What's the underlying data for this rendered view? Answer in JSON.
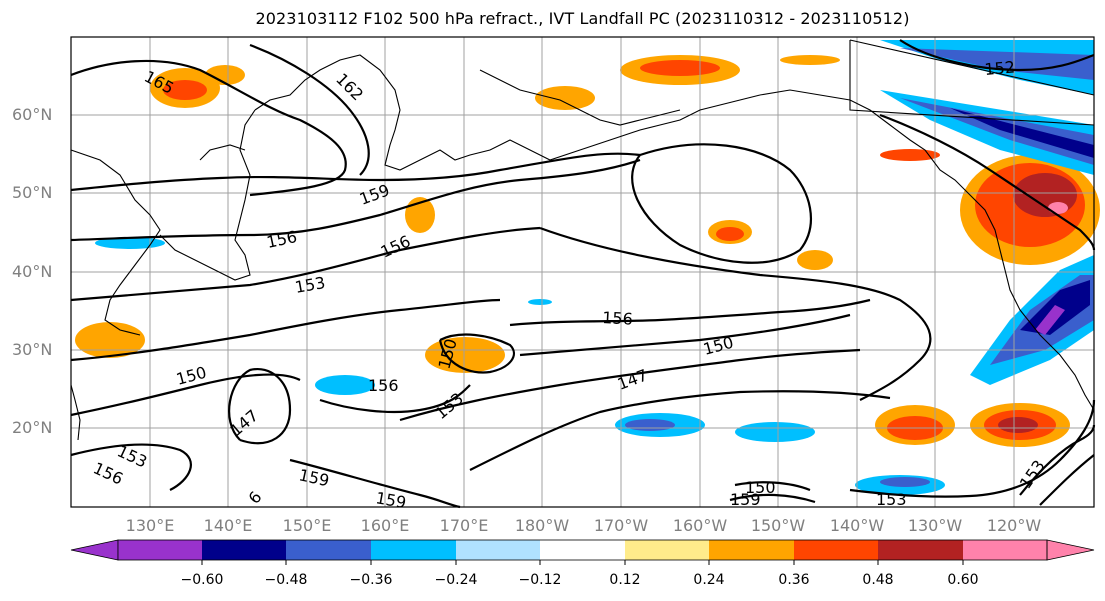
{
  "title": "2023103112 F102 500 hPa refract., IVT Landfall PC (2023110312 - 2023110512)",
  "map": {
    "lon_labels": [
      "130°E",
      "140°E",
      "150°E",
      "160°E",
      "170°E",
      "180°W",
      "170°W",
      "160°W",
      "150°W",
      "140°W",
      "130°W",
      "120°W"
    ],
    "lat_labels": [
      "60°N",
      "50°N",
      "40°N",
      "30°N",
      "20°N"
    ],
    "contour_labels": [
      "165",
      "162",
      "159",
      "156",
      "153",
      "150",
      "147",
      "156",
      "150",
      "156",
      "150",
      "147",
      "153",
      "156",
      "159",
      "159",
      "153",
      "156",
      "159",
      "150",
      "153",
      "152",
      "153",
      "6"
    ]
  },
  "colorbar": {
    "colors": [
      "#9932cc",
      "#00008b",
      "#3a5fcd",
      "#00bfff",
      "#b0e2ff",
      "#ffffff",
      "#ffec8b",
      "#ffa500",
      "#ff4500",
      "#b22222",
      "#ff82ab"
    ],
    "tick_labels": [
      "−0.60",
      "−0.48",
      "−0.36",
      "−0.24",
      "−0.12",
      "0.12",
      "0.24",
      "0.36",
      "0.48",
      "0.60"
    ]
  }
}
